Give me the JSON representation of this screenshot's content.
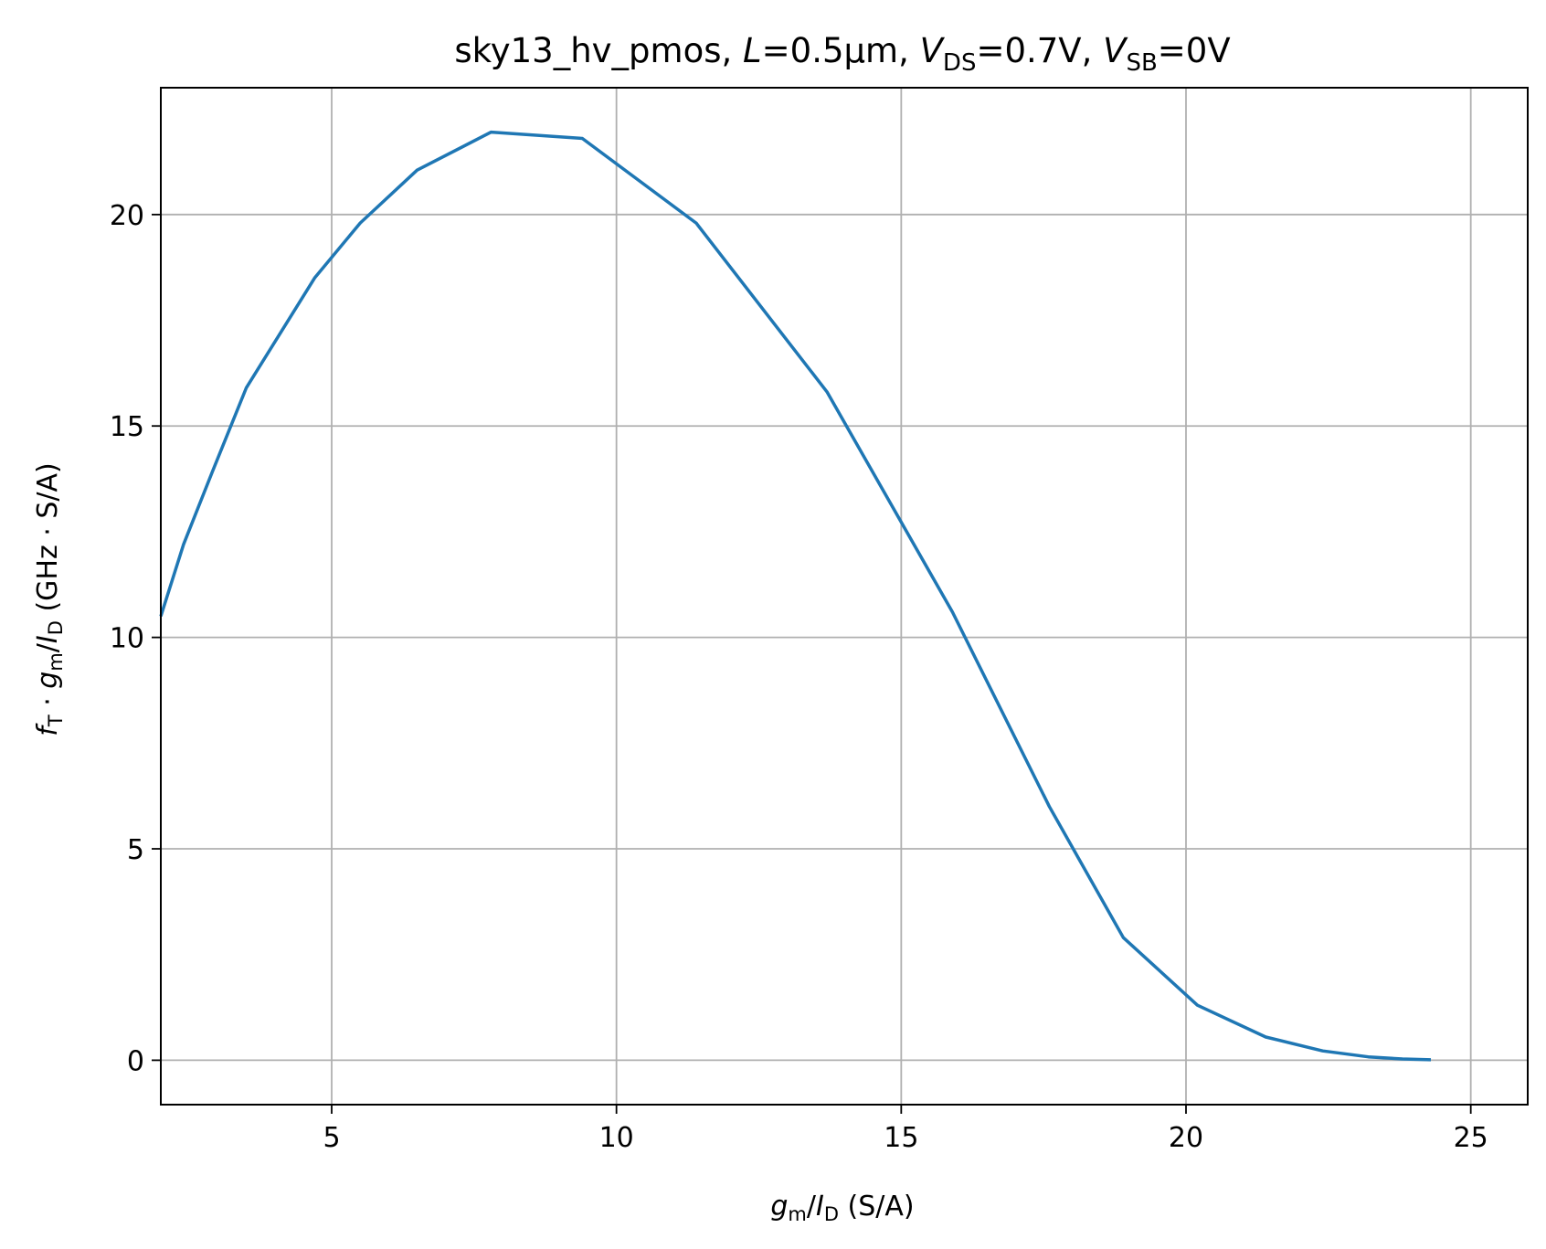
{
  "chart_data": {
    "type": "line",
    "title": {
      "prefix": "sky13_hv_pmos, ",
      "L_sym": "L",
      "L_val": "=0.5µm, ",
      "vds_sym": "V",
      "vds_sub": "DS",
      "vds_val": "=0.7V, ",
      "vsb_sym": "V",
      "vsb_sub": "SB",
      "vsb_val": "=0V"
    },
    "xlabel": {
      "g": "g",
      "g_sub": "m",
      "slash": "/",
      "I": "I",
      "I_sub": "D",
      "unit": " (S/A)"
    },
    "ylabel": {
      "f": "f",
      "f_sub": "T",
      "dot": " · ",
      "g": "g",
      "g_sub": "m",
      "slash": "/",
      "I": "I",
      "I_sub": "D",
      "unit": " (GHz · S/A)"
    },
    "xlim": [
      2.0,
      26.0
    ],
    "ylim": [
      -1.05,
      23.0
    ],
    "xticks": [
      5,
      10,
      15,
      20,
      25
    ],
    "yticks": [
      0,
      5,
      10,
      15,
      20
    ],
    "grid": true,
    "series": [
      {
        "color": "#1f77b4",
        "x": [
          2.0,
          2.4,
          2.9,
          3.5,
          4.1,
          4.7,
          5.5,
          6.5,
          7.8,
          9.4,
          11.4,
          13.7,
          15.9,
          17.6,
          18.9,
          20.2,
          21.4,
          22.4,
          23.2,
          23.8,
          24.3
        ],
        "y": [
          10.5,
          12.2,
          13.9,
          15.9,
          17.2,
          18.5,
          19.8,
          21.05,
          21.95,
          21.8,
          19.8,
          15.8,
          10.6,
          6.0,
          2.9,
          1.3,
          0.55,
          0.22,
          0.08,
          0.03,
          0.01
        ]
      }
    ]
  }
}
